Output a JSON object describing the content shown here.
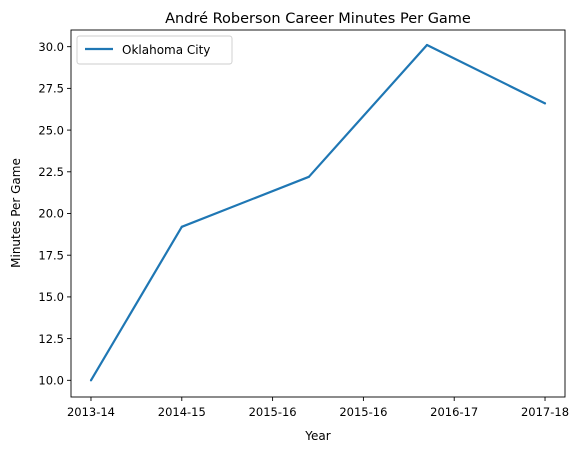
{
  "chart_data": {
    "type": "line",
    "title": "André Roberson Career Minutes Per Game",
    "xlabel": "Year",
    "ylabel": "Minutes Per Game",
    "categories": [
      "2013-14",
      "2014-15",
      "2015-16",
      "2015-16",
      "2016-17",
      "2017-18"
    ],
    "ylim": [
      9.0,
      31.0
    ],
    "yticks": [
      "10.0",
      "12.5",
      "15.0",
      "17.5",
      "20.0",
      "22.5",
      "25.0",
      "27.5",
      "30.0"
    ],
    "series": [
      {
        "name": "Oklahoma City",
        "color": "#1f77b4",
        "points": [
          {
            "x": 0,
            "y": 10.0
          },
          {
            "x": 1,
            "y": 19.2
          },
          {
            "x": 2.4,
            "y": 22.2
          },
          {
            "x": 3.7,
            "y": 30.1
          },
          {
            "x": 5,
            "y": 26.6
          }
        ]
      }
    ],
    "grid": false,
    "legend_position": "top-left"
  }
}
